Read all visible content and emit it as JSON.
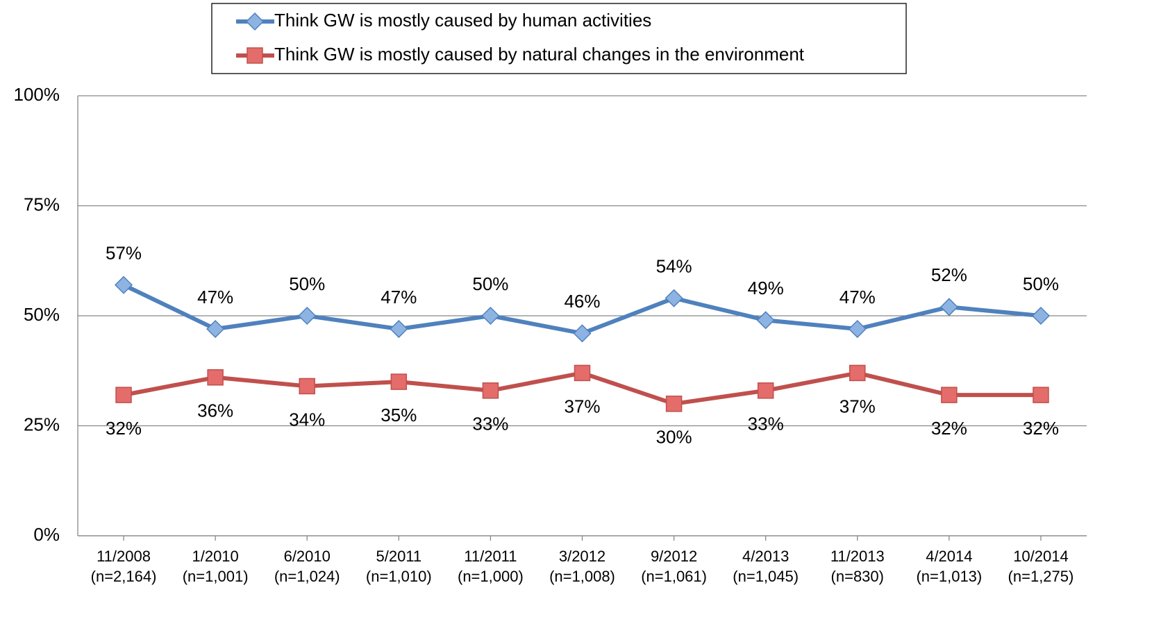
{
  "chart_data": {
    "type": "line",
    "categories": [
      "11/2008",
      "1/2010",
      "6/2010",
      "5/2011",
      "11/2011",
      "3/2012",
      "9/2012",
      "4/2013",
      "11/2013",
      "4/2014",
      "10/2014"
    ],
    "category_sample_sizes": [
      "(n=2,164)",
      "(n=1,001)",
      "(n=1,024)",
      "(n=1,010)",
      "(n=1,000)",
      "(n=1,008)",
      "(n=1,061)",
      "(n=1,045)",
      "(n=830)",
      "(n=1,013)",
      "(n=1,275)"
    ],
    "series": [
      {
        "name": "Think GW is mostly caused by human activities",
        "color": "#4f81bd",
        "marker_color": "#8db3e2",
        "marker": "diamond",
        "values": [
          57,
          47,
          50,
          47,
          50,
          46,
          54,
          49,
          47,
          52,
          50
        ],
        "value_labels": [
          "57%",
          "47%",
          "50%",
          "47%",
          "50%",
          "46%",
          "54%",
          "49%",
          "47%",
          "52%",
          "50%"
        ]
      },
      {
        "name": "Think GW is mostly caused by natural changes in the environment",
        "color": "#c0504d",
        "marker_color": "#e46c6a",
        "marker": "square",
        "values": [
          32,
          36,
          34,
          35,
          33,
          37,
          30,
          33,
          37,
          32,
          32
        ],
        "value_labels": [
          "32%",
          "36%",
          "34%",
          "35%",
          "33%",
          "37%",
          "30%",
          "33%",
          "37%",
          "32%",
          "32%"
        ]
      }
    ],
    "ylim": [
      0,
      100
    ],
    "yticks": [
      {
        "value": 0,
        "label": "0%"
      },
      {
        "value": 25,
        "label": "25%"
      },
      {
        "value": 50,
        "label": "50%"
      },
      {
        "value": 75,
        "label": "75%"
      },
      {
        "value": 100,
        "label": "100%"
      }
    ],
    "grid": true,
    "legend": "top"
  }
}
